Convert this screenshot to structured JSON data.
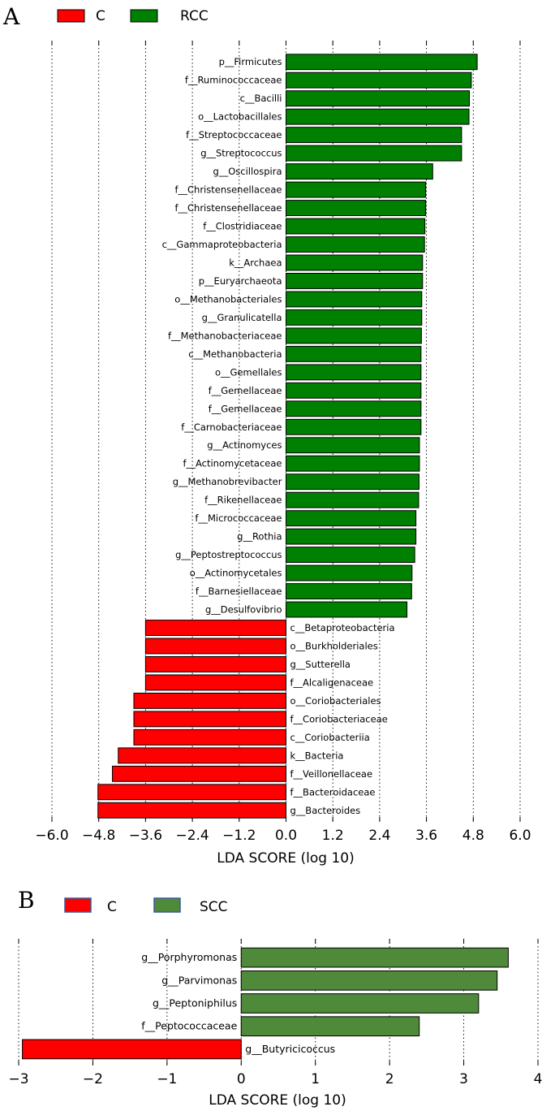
{
  "chart_data": [
    {
      "panel": "A",
      "type": "bar",
      "orientation": "horizontal",
      "legend": [
        {
          "name": "C",
          "color": "#ff0000"
        },
        {
          "name": "RCC",
          "color": "#008000"
        }
      ],
      "xlabel": "LDA SCORE (log 10)",
      "xlim": [
        -6.0,
        6.0
      ],
      "xticks": [
        "−6.0",
        "−4.8",
        "−3.6",
        "−2.4",
        "−1.2",
        "0.0",
        "1.2",
        "2.4",
        "3.6",
        "4.8",
        "6.0"
      ],
      "grid": "vertical dotted",
      "bars": [
        {
          "label": "p__Firmicutes",
          "value": 4.9,
          "group": "RCC"
        },
        {
          "label": "f__Ruminococcaceae",
          "value": 4.75,
          "group": "RCC"
        },
        {
          "label": "c__Bacilli",
          "value": 4.7,
          "group": "RCC"
        },
        {
          "label": "o__Lactobacillales",
          "value": 4.69,
          "group": "RCC"
        },
        {
          "label": "f__Streptococcaceae",
          "value": 4.5,
          "group": "RCC"
        },
        {
          "label": "g__Streptococcus",
          "value": 4.5,
          "group": "RCC"
        },
        {
          "label": "g__Oscillospira",
          "value": 3.76,
          "group": "RCC"
        },
        {
          "label": "f__Christensenellaceae",
          "value": 3.58,
          "group": "RCC"
        },
        {
          "label": "f__Christensenellaceae",
          "value": 3.58,
          "group": "RCC"
        },
        {
          "label": "f__Clostridiaceae",
          "value": 3.56,
          "group": "RCC"
        },
        {
          "label": "c__Gammaproteobacteria",
          "value": 3.55,
          "group": "RCC"
        },
        {
          "label": "k__Archaea",
          "value": 3.5,
          "group": "RCC"
        },
        {
          "label": "p__Euryarchaeota",
          "value": 3.5,
          "group": "RCC"
        },
        {
          "label": "o__Methanobacteriales",
          "value": 3.48,
          "group": "RCC"
        },
        {
          "label": "g__Granulicatella",
          "value": 3.48,
          "group": "RCC"
        },
        {
          "label": "f__Methanobacteriaceae",
          "value": 3.47,
          "group": "RCC"
        },
        {
          "label": "c__Methanobacteria",
          "value": 3.46,
          "group": "RCC"
        },
        {
          "label": "o__Gemellales",
          "value": 3.46,
          "group": "RCC"
        },
        {
          "label": "f__Gemellaceae",
          "value": 3.46,
          "group": "RCC"
        },
        {
          "label": "f__Gemellaceae",
          "value": 3.46,
          "group": "RCC"
        },
        {
          "label": "f__Carnobacteriaceae",
          "value": 3.46,
          "group": "RCC"
        },
        {
          "label": "g__Actinomyces",
          "value": 3.42,
          "group": "RCC"
        },
        {
          "label": "f__Actinomycetaceae",
          "value": 3.42,
          "group": "RCC"
        },
        {
          "label": "g__Methanobrevibacter",
          "value": 3.41,
          "group": "RCC"
        },
        {
          "label": "f__Rikenellaceae",
          "value": 3.4,
          "group": "RCC"
        },
        {
          "label": "f__Micrococcaceae",
          "value": 3.33,
          "group": "RCC"
        },
        {
          "label": "g__Rothia",
          "value": 3.33,
          "group": "RCC"
        },
        {
          "label": "g__Peptostreptococcus",
          "value": 3.3,
          "group": "RCC"
        },
        {
          "label": "o__Actinomycetales",
          "value": 3.23,
          "group": "RCC"
        },
        {
          "label": "f__Barnesiellaceae",
          "value": 3.22,
          "group": "RCC"
        },
        {
          "label": "g__Desulfovibrio",
          "value": 3.1,
          "group": "RCC"
        },
        {
          "label": "c__Betaproteobacteria",
          "value": -3.6,
          "group": "C"
        },
        {
          "label": "o__Burkholderiales",
          "value": -3.6,
          "group": "C"
        },
        {
          "label": "g__Sutterella",
          "value": -3.6,
          "group": "C"
        },
        {
          "label": "f__Alcaligenaceae",
          "value": -3.6,
          "group": "C"
        },
        {
          "label": "o__Coriobacteriales",
          "value": -3.9,
          "group": "C"
        },
        {
          "label": "f__Coriobacteriaceae",
          "value": -3.9,
          "group": "C"
        },
        {
          "label": "c__Coriobacteriia",
          "value": -3.9,
          "group": "C"
        },
        {
          "label": "k__Bacteria",
          "value": -4.3,
          "group": "C"
        },
        {
          "label": "f__Veillonellaceae",
          "value": -4.45,
          "group": "C"
        },
        {
          "label": "f__Bacteroidaceae",
          "value": -4.82,
          "group": "C"
        },
        {
          "label": "g__Bacteroides",
          "value": -4.82,
          "group": "C"
        }
      ]
    },
    {
      "panel": "B",
      "type": "bar",
      "orientation": "horizontal",
      "legend": [
        {
          "name": "C",
          "color": "#ff0000"
        },
        {
          "name": "SCC",
          "color": "#4e8a3a"
        }
      ],
      "xlabel": "LDA SCORE (log 10)",
      "xlim": [
        -3,
        4
      ],
      "xticks": [
        "−3",
        "−2",
        "−1",
        "0",
        "1",
        "2",
        "3",
        "4"
      ],
      "grid": "vertical dotted",
      "bars": [
        {
          "label": "g__Porphyromonas",
          "value": 3.6,
          "group": "SCC"
        },
        {
          "label": "g__Parvimonas",
          "value": 3.45,
          "group": "SCC"
        },
        {
          "label": "g__Peptoniphilus",
          "value": 3.2,
          "group": "SCC"
        },
        {
          "label": "f__Peptococcaceae",
          "value": 2.4,
          "group": "SCC"
        },
        {
          "label": "g__Butyricicoccus",
          "value": -2.95,
          "group": "C"
        }
      ]
    }
  ],
  "colors": {
    "c": "#ff0000",
    "rcc": "#008000",
    "scc_legend": "#4e8a3a",
    "bar_edge": "#000000",
    "legend_edge_b": "#3b5a9a"
  }
}
